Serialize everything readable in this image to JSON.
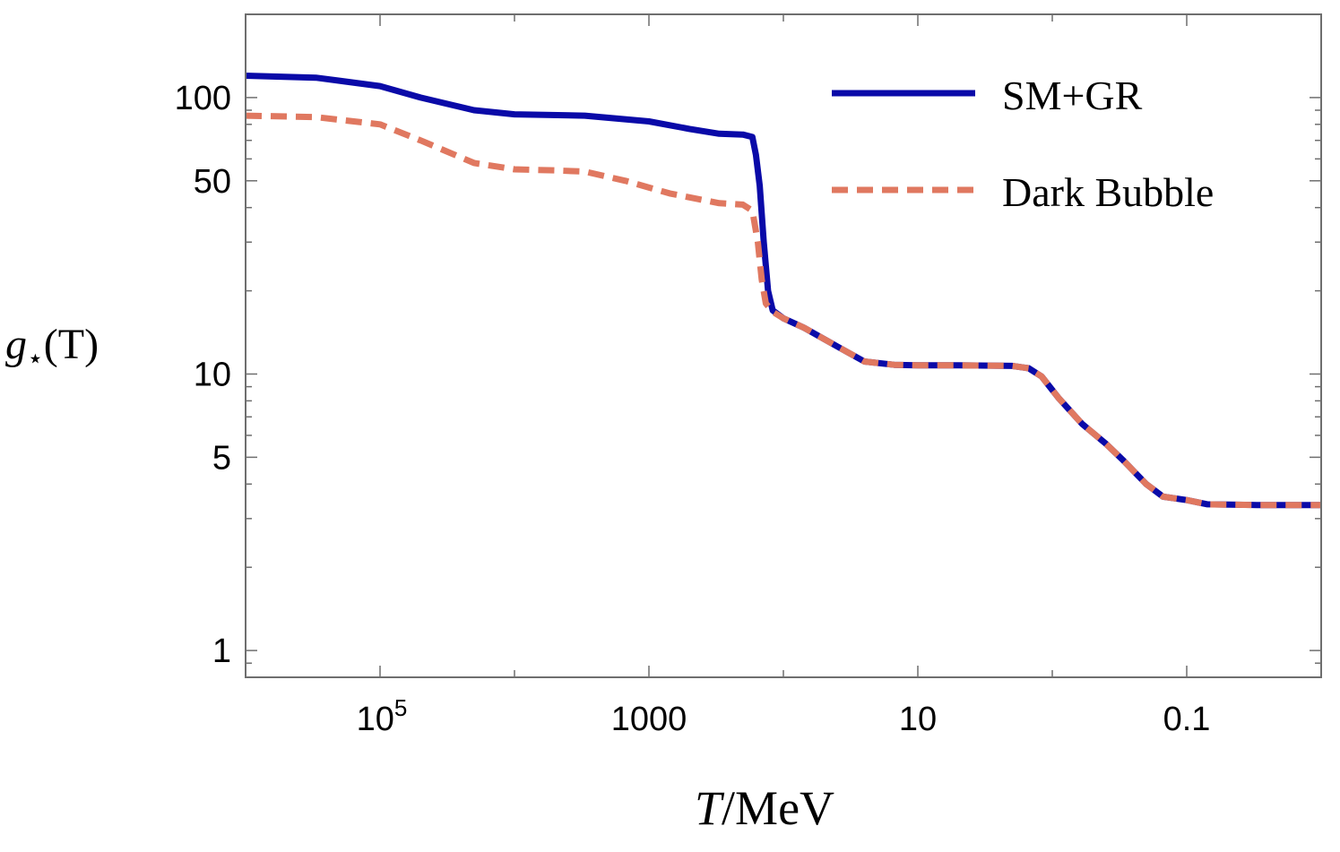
{
  "chart_data": {
    "type": "line",
    "xlabel": {
      "var": "T",
      "rest": "/MeV"
    },
    "ylabel": {
      "var": "g",
      "sub": "⋆",
      "rest": "(T)"
    },
    "x_scale": "log",
    "x_reversed": true,
    "y_scale": "log",
    "xlim": [
      1000000,
      0.01
    ],
    "ylim": [
      0.8,
      200
    ],
    "x_ticks": [
      {
        "value": 100000,
        "label": "10",
        "exp": "5"
      },
      {
        "value": 1000,
        "label": "1000"
      },
      {
        "value": 10,
        "label": "10"
      },
      {
        "value": 0.1,
        "label": "0.1"
      }
    ],
    "y_ticks": [
      {
        "value": 100,
        "label": "100"
      },
      {
        "value": 50,
        "label": "50"
      },
      {
        "value": 10,
        "label": "10"
      },
      {
        "value": 5,
        "label": "5"
      },
      {
        "value": 1,
        "label": "1"
      }
    ],
    "grid": false,
    "legend_position": "top-right",
    "series": [
      {
        "name": "SM+GR",
        "color": "#0a0aa8",
        "style": "solid",
        "points": [
          [
            1000000,
            120
          ],
          [
            300000,
            118
          ],
          [
            100000,
            110
          ],
          [
            50000,
            100
          ],
          [
            20000,
            90
          ],
          [
            10000,
            87
          ],
          [
            3000,
            86
          ],
          [
            1000,
            82
          ],
          [
            500,
            77
          ],
          [
            300,
            74
          ],
          [
            200,
            73.5
          ],
          [
            170,
            72
          ],
          [
            160,
            62
          ],
          [
            150,
            48
          ],
          [
            140,
            30
          ],
          [
            130,
            20
          ],
          [
            120,
            17
          ],
          [
            100,
            15.9
          ],
          [
            70,
            14.7
          ],
          [
            40,
            12.6
          ],
          [
            25,
            11.1
          ],
          [
            15,
            10.8
          ],
          [
            10,
            10.75
          ],
          [
            5,
            10.75
          ],
          [
            2,
            10.7
          ],
          [
            1.5,
            10.5
          ],
          [
            1.2,
            9.8
          ],
          [
            0.9,
            8.2
          ],
          [
            0.6,
            6.6
          ],
          [
            0.4,
            5.6
          ],
          [
            0.3,
            4.9
          ],
          [
            0.2,
            4.0
          ],
          [
            0.15,
            3.6
          ],
          [
            0.1,
            3.5
          ],
          [
            0.07,
            3.38
          ],
          [
            0.03,
            3.36
          ],
          [
            0.01,
            3.36
          ]
        ]
      },
      {
        "name": "Dark Bubble",
        "color": "#e07860",
        "style": "dashed",
        "points": [
          [
            1000000,
            86
          ],
          [
            300000,
            85
          ],
          [
            100000,
            80
          ],
          [
            50000,
            70
          ],
          [
            20000,
            58
          ],
          [
            10000,
            55
          ],
          [
            5000,
            54.5
          ],
          [
            3000,
            54
          ],
          [
            1500,
            50
          ],
          [
            700,
            45
          ],
          [
            300,
            41.5
          ],
          [
            200,
            41
          ],
          [
            170,
            39
          ],
          [
            155,
            30
          ],
          [
            145,
            22
          ],
          [
            135,
            18
          ],
          [
            120,
            16.8
          ],
          [
            100,
            15.9
          ],
          [
            70,
            14.7
          ],
          [
            40,
            12.6
          ],
          [
            25,
            11.1
          ],
          [
            15,
            10.8
          ],
          [
            10,
            10.75
          ],
          [
            5,
            10.75
          ],
          [
            2,
            10.7
          ],
          [
            1.5,
            10.5
          ],
          [
            1.2,
            9.8
          ],
          [
            0.9,
            8.2
          ],
          [
            0.6,
            6.6
          ],
          [
            0.4,
            5.6
          ],
          [
            0.3,
            4.9
          ],
          [
            0.2,
            4.0
          ],
          [
            0.15,
            3.6
          ],
          [
            0.1,
            3.5
          ],
          [
            0.07,
            3.38
          ],
          [
            0.03,
            3.36
          ],
          [
            0.01,
            3.36
          ]
        ]
      }
    ]
  }
}
